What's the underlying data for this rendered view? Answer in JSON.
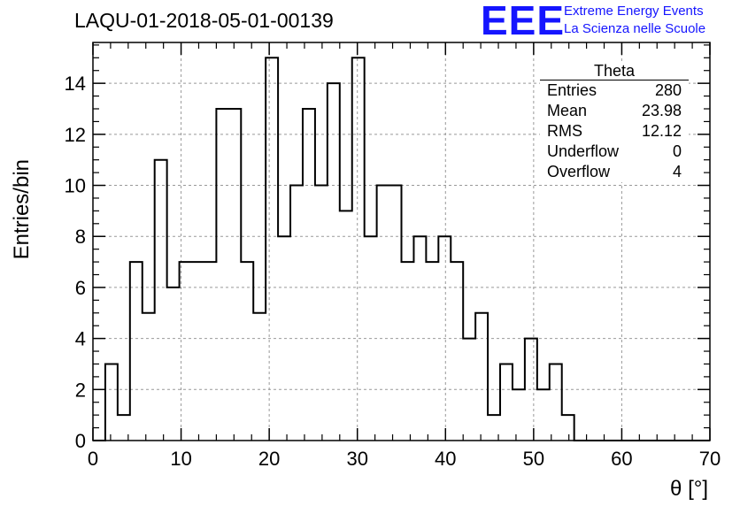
{
  "title": "LAQU-01-2018-05-01-00139",
  "logo": {
    "text": "EEE",
    "line1": "Extreme Energy Events",
    "line2": "La Scienza nelle Scuole",
    "color": "#1515ff"
  },
  "stats": {
    "title": "Theta",
    "rows": [
      {
        "label": "Entries",
        "value": "280"
      },
      {
        "label": "Mean",
        "value": "23.98"
      },
      {
        "label": "RMS",
        "value": "12.12"
      },
      {
        "label": "Underflow",
        "value": "0"
      },
      {
        "label": "Overflow",
        "value": "4"
      }
    ]
  },
  "chart_data": {
    "type": "histogram",
    "xlabel": "θ [°]",
    "ylabel": "Entries/bin",
    "xlim": [
      0,
      70
    ],
    "ylim": [
      0,
      15.6
    ],
    "bin_width": 1.4,
    "x_ticks": [
      0,
      10,
      20,
      30,
      40,
      50,
      60,
      70
    ],
    "y_ticks": [
      0,
      2,
      4,
      6,
      8,
      10,
      12,
      14
    ],
    "grid": true,
    "values": [
      0,
      3,
      1,
      7,
      5,
      11,
      6,
      7,
      7,
      7,
      13,
      13,
      7,
      5,
      15,
      8,
      10,
      13,
      10,
      14,
      9,
      15,
      8,
      10,
      10,
      7,
      8,
      7,
      8,
      7,
      4,
      5,
      1,
      3,
      2,
      4,
      2,
      3,
      1,
      0,
      0,
      0,
      0,
      0,
      0,
      0,
      0,
      0,
      0,
      0
    ]
  }
}
